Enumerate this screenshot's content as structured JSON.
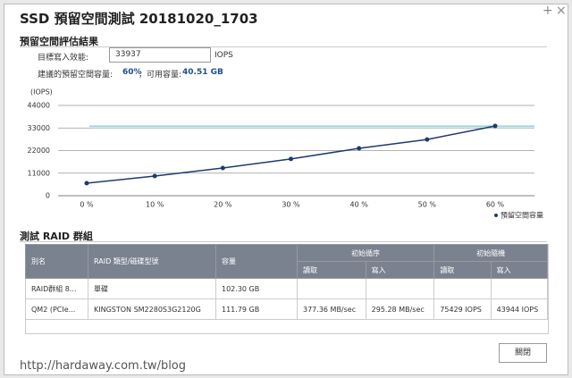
{
  "dialog": {
    "title": "SSD 預留空間測試 20181020_1703",
    "close_button": "關閉"
  },
  "result": {
    "heading": "預留空間評估結果",
    "target_label": "目標寫入效能:",
    "target_iops": 33937,
    "target_unit": "IOPS",
    "suggest_label": "建議的預留空間容量:",
    "suggest_percent": "60%",
    "available_label": "，可用容量:",
    "available_capacity": "40.51 GB"
  },
  "chart_data": {
    "type": "line",
    "y_label": "(IOPS)",
    "categories": [
      "0 %",
      "10 %",
      "20 %",
      "30 %",
      "40 %",
      "50 %",
      "60 %"
    ],
    "series": [
      {
        "name": "預留空間容量",
        "color": "#1f3a6e",
        "values": [
          6100,
          9600,
          13500,
          17900,
          23100,
          27400,
          34000
        ]
      }
    ],
    "ylim": [
      0,
      44000
    ],
    "yticks": [
      0,
      11000,
      22000,
      33000,
      44000
    ],
    "grid": true,
    "target_color": "#6fd0e0"
  },
  "table": {
    "heading": "測試 RAID 群組",
    "headers": [
      "別名",
      "RAID 類型/磁碟型號",
      "容量",
      "初始循序",
      "初始隨機"
    ],
    "subheaders": [
      "讀取",
      "寫入",
      "讀取",
      "寫入"
    ],
    "rows": [
      [
        "RAID群組 8...",
        "單碟",
        "102.30 GB"
      ],
      [
        "QM2 (PCIe...",
        "KINGSTON SM2280S3G2120G",
        "111.79 GB",
        "377.36 MB/sec",
        "295.28 MB/sec",
        "75429 IOPS",
        "43944 IOPS"
      ]
    ]
  },
  "watermark": "http://hardaway.com.tw/blog"
}
